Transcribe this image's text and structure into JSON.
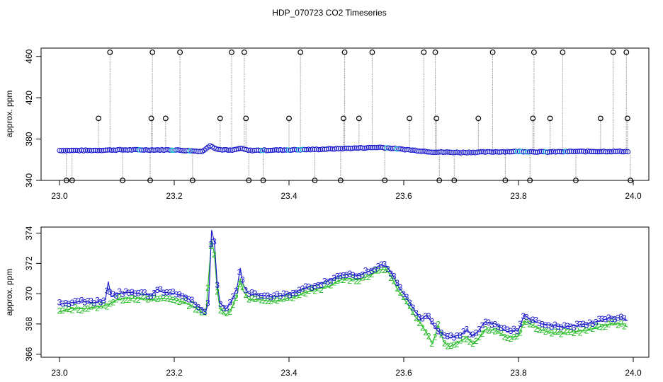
{
  "figure": {
    "title": "HDP_070723  CO2 Timeseries"
  },
  "colors": {
    "background": "#ffffff",
    "axis": "#000000",
    "stem": "#9a9a9a",
    "outlier_marker": "#000000",
    "series_3": "#1a1acc",
    "series_2": "#22bb22",
    "cyan_points": "#00c8d0"
  },
  "chart_data": [
    {
      "type": "scatter",
      "title": "",
      "xlabel": "",
      "ylabel": "approx. ppm",
      "xlim": [
        23.0,
        24.0
      ],
      "ylim": [
        340,
        468
      ],
      "x_ticks": [
        "23.0",
        "23.2",
        "23.4",
        "23.6",
        "23.8",
        "24.0"
      ],
      "y_ticks": [
        "340",
        "380",
        "420",
        "460"
      ],
      "grid": false,
      "legend": "none",
      "series": [
        {
          "kind": "baseline",
          "values": [
            [
              23.0,
              369
            ],
            [
              23.05,
              369
            ],
            [
              23.1,
              369.5
            ],
            [
              23.15,
              369.5
            ],
            [
              23.2,
              369.5
            ],
            [
              23.25,
              368
            ],
            [
              23.262,
              374
            ],
            [
              23.275,
              370
            ],
            [
              23.3,
              369
            ],
            [
              23.315,
              371
            ],
            [
              23.33,
              369
            ],
            [
              23.4,
              369.5
            ],
            [
              23.45,
              370
            ],
            [
              23.5,
              371
            ],
            [
              23.56,
              372
            ],
            [
              23.6,
              370
            ],
            [
              23.65,
              367.5
            ],
            [
              23.7,
              367
            ],
            [
              23.75,
              367.5
            ],
            [
              23.8,
              368
            ],
            [
              23.85,
              367.5
            ],
            [
              23.9,
              368
            ],
            [
              23.95,
              368
            ],
            [
              23.99,
              368
            ]
          ]
        },
        {
          "kind": "spikes",
          "values": [
            [
              23.012,
              340
            ],
            [
              23.022,
              340
            ],
            [
              23.068,
              400
            ],
            [
              23.088,
              464
            ],
            [
              23.11,
              340
            ],
            [
              23.158,
              340
            ],
            [
              23.16,
              400
            ],
            [
              23.162,
              464
            ],
            [
              23.185,
              400
            ],
            [
              23.21,
              464
            ],
            [
              23.232,
              340
            ],
            [
              23.28,
              400
            ],
            [
              23.3,
              464
            ],
            [
              23.322,
              464
            ],
            [
              23.325,
              400
            ],
            [
              23.33,
              340
            ],
            [
              23.355,
              340
            ],
            [
              23.4,
              400
            ],
            [
              23.42,
              464
            ],
            [
              23.445,
              340
            ],
            [
              23.49,
              340
            ],
            [
              23.495,
              400
            ],
            [
              23.497,
              464
            ],
            [
              23.522,
              400
            ],
            [
              23.545,
              464
            ],
            [
              23.567,
              340
            ],
            [
              23.61,
              400
            ],
            [
              23.635,
              464
            ],
            [
              23.655,
              464
            ],
            [
              23.657,
              400
            ],
            [
              23.662,
              340
            ],
            [
              23.688,
              340
            ],
            [
              23.73,
              400
            ],
            [
              23.755,
              464
            ],
            [
              23.777,
              340
            ],
            [
              23.82,
              340
            ],
            [
              23.825,
              400
            ],
            [
              23.827,
              464
            ],
            [
              23.855,
              400
            ],
            [
              23.877,
              464
            ],
            [
              23.9,
              340
            ],
            [
              23.943,
              400
            ],
            [
              23.965,
              464
            ],
            [
              23.988,
              464
            ],
            [
              23.99,
              400
            ],
            [
              23.995,
              340
            ]
          ]
        }
      ]
    },
    {
      "type": "scatter",
      "title": "",
      "xlabel": "",
      "ylabel": "approx. ppm",
      "xlim": [
        23.0,
        24.0
      ],
      "ylim": [
        365.8,
        374.4
      ],
      "x_ticks": [
        "23.0",
        "23.2",
        "23.4",
        "23.6",
        "23.8",
        "24.0"
      ],
      "y_ticks": [
        "366",
        "368",
        "370",
        "372",
        "374"
      ],
      "grid": false,
      "legend": "none",
      "series": [
        {
          "marker": "3",
          "values": [
            [
              23.0,
              369.3
            ],
            [
              23.02,
              369.4
            ],
            [
              23.04,
              369.5
            ],
            [
              23.06,
              369.4
            ],
            [
              23.08,
              369.6
            ],
            [
              23.085,
              370.8
            ],
            [
              23.09,
              369.8
            ],
            [
              23.1,
              370
            ],
            [
              23.12,
              370.1
            ],
            [
              23.14,
              370
            ],
            [
              23.16,
              369.9
            ],
            [
              23.17,
              370.3
            ],
            [
              23.18,
              370.1
            ],
            [
              23.2,
              370
            ],
            [
              23.22,
              369.8
            ],
            [
              23.24,
              369.2
            ],
            [
              23.255,
              368.8
            ],
            [
              23.26,
              369.5
            ],
            [
              23.265,
              374.2
            ],
            [
              23.27,
              373.4
            ],
            [
              23.275,
              370.6
            ],
            [
              23.28,
              369.4
            ],
            [
              23.29,
              369
            ],
            [
              23.3,
              369.5
            ],
            [
              23.31,
              370.5
            ],
            [
              23.315,
              371.7
            ],
            [
              23.32,
              370.6
            ],
            [
              23.33,
              370
            ],
            [
              23.35,
              369.9
            ],
            [
              23.37,
              369.8
            ],
            [
              23.39,
              369.9
            ],
            [
              23.41,
              370.1
            ],
            [
              23.43,
              370.4
            ],
            [
              23.45,
              370.6
            ],
            [
              23.47,
              370.9
            ],
            [
              23.49,
              371.2
            ],
            [
              23.5,
              371.3
            ],
            [
              23.52,
              371.2
            ],
            [
              23.54,
              371.5
            ],
            [
              23.56,
              371.9
            ],
            [
              23.57,
              371.8
            ],
            [
              23.58,
              371.3
            ],
            [
              23.59,
              370.5
            ],
            [
              23.6,
              370
            ],
            [
              23.61,
              369.4
            ],
            [
              23.62,
              368.8
            ],
            [
              23.63,
              368.3
            ],
            [
              23.64,
              368.6
            ],
            [
              23.65,
              368
            ],
            [
              23.66,
              367.5
            ],
            [
              23.67,
              367.3
            ],
            [
              23.68,
              367.1
            ],
            [
              23.7,
              367.3
            ],
            [
              23.71,
              367.6
            ],
            [
              23.72,
              367.2
            ],
            [
              23.73,
              367.5
            ],
            [
              23.74,
              368.1
            ],
            [
              23.76,
              368
            ],
            [
              23.78,
              367.5
            ],
            [
              23.8,
              367.6
            ],
            [
              23.81,
              368.6
            ],
            [
              23.82,
              368.3
            ],
            [
              23.84,
              368
            ],
            [
              23.86,
              367.9
            ],
            [
              23.88,
              367.8
            ],
            [
              23.9,
              367.9
            ],
            [
              23.92,
              368
            ],
            [
              23.94,
              368.2
            ],
            [
              23.96,
              368.4
            ],
            [
              23.98,
              368.4
            ],
            [
              23.99,
              368.2
            ]
          ]
        },
        {
          "marker": "2",
          "values": [
            [
              23.0,
              368.8
            ],
            [
              23.02,
              369
            ],
            [
              23.04,
              369
            ],
            [
              23.06,
              369.1
            ],
            [
              23.08,
              369.2
            ],
            [
              23.1,
              369.6
            ],
            [
              23.12,
              369.7
            ],
            [
              23.14,
              369.7
            ],
            [
              23.16,
              369.6
            ],
            [
              23.18,
              369.7
            ],
            [
              23.2,
              369.6
            ],
            [
              23.22,
              369.4
            ],
            [
              23.24,
              369
            ],
            [
              23.255,
              368.6
            ],
            [
              23.265,
              373.6
            ],
            [
              23.27,
              372.6
            ],
            [
              23.275,
              370.2
            ],
            [
              23.28,
              369
            ],
            [
              23.29,
              368.6
            ],
            [
              23.3,
              369
            ],
            [
              23.31,
              370
            ],
            [
              23.315,
              371
            ],
            [
              23.32,
              370.2
            ],
            [
              23.33,
              369.6
            ],
            [
              23.35,
              369.6
            ],
            [
              23.37,
              369.5
            ],
            [
              23.39,
              369.6
            ],
            [
              23.41,
              369.8
            ],
            [
              23.43,
              370.1
            ],
            [
              23.45,
              370.3
            ],
            [
              23.47,
              370.5
            ],
            [
              23.49,
              370.9
            ],
            [
              23.5,
              371
            ],
            [
              23.52,
              370.9
            ],
            [
              23.54,
              371.2
            ],
            [
              23.56,
              371.6
            ],
            [
              23.57,
              371.6
            ],
            [
              23.58,
              371
            ],
            [
              23.59,
              370.2
            ],
            [
              23.6,
              369.7
            ],
            [
              23.61,
              369.1
            ],
            [
              23.62,
              368.5
            ],
            [
              23.63,
              368
            ],
            [
              23.64,
              367.4
            ],
            [
              23.65,
              366.7
            ],
            [
              23.66,
              367.9
            ],
            [
              23.67,
              366.8
            ],
            [
              23.68,
              366.5
            ],
            [
              23.7,
              366.9
            ],
            [
              23.71,
              367.1
            ],
            [
              23.72,
              366.7
            ],
            [
              23.73,
              367
            ],
            [
              23.74,
              367.6
            ],
            [
              23.76,
              367.6
            ],
            [
              23.78,
              367.1
            ],
            [
              23.8,
              367.2
            ],
            [
              23.81,
              368.2
            ],
            [
              23.82,
              368
            ],
            [
              23.84,
              367.6
            ],
            [
              23.86,
              367.4
            ],
            [
              23.88,
              367.4
            ],
            [
              23.9,
              367.5
            ],
            [
              23.92,
              367.6
            ],
            [
              23.94,
              367.8
            ],
            [
              23.96,
              368
            ],
            [
              23.98,
              368
            ],
            [
              23.99,
              367.8
            ]
          ]
        }
      ]
    }
  ]
}
